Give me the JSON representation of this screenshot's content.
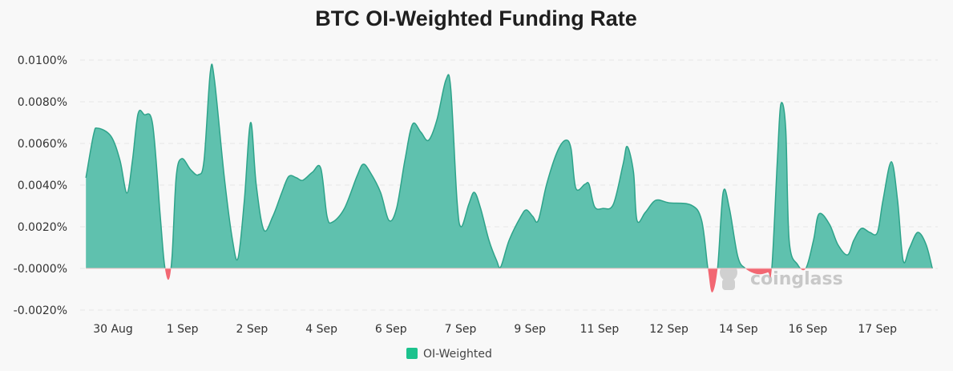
{
  "chart_data": {
    "type": "area",
    "title": "BTC OI-Weighted Funding Rate",
    "xlabel": "",
    "ylabel": "",
    "ylim": [
      -0.002,
      0.01
    ],
    "grid": true,
    "legend_position": "bottom-center",
    "y_ticks": [
      {
        "value": 0.01,
        "label": "0.0100%"
      },
      {
        "value": 0.008,
        "label": "0.0080%"
      },
      {
        "value": 0.006,
        "label": "0.0060%"
      },
      {
        "value": 0.004,
        "label": "0.0040%"
      },
      {
        "value": 0.002,
        "label": "0.0020%"
      },
      {
        "value": 0,
        "label": "-0.0000%"
      },
      {
        "value": -0.002,
        "label": "-0.0020%"
      }
    ],
    "x_ticks": [
      {
        "pos": 0,
        "label": "30 Aug"
      },
      {
        "pos": 1,
        "label": "1 Sep"
      },
      {
        "pos": 2,
        "label": "2 Sep"
      },
      {
        "pos": 3,
        "label": "4 Sep"
      },
      {
        "pos": 4,
        "label": "6 Sep"
      },
      {
        "pos": 5,
        "label": "7 Sep"
      },
      {
        "pos": 6,
        "label": "9 Sep"
      },
      {
        "pos": 7,
        "label": "11 Sep"
      },
      {
        "pos": 8,
        "label": "12 Sep"
      },
      {
        "pos": 9,
        "label": "14 Sep"
      },
      {
        "pos": 10,
        "label": "16 Sep"
      },
      {
        "pos": 11,
        "label": "17 Sep"
      }
    ],
    "xlim": [
      -0.39,
      11.79
    ],
    "series": [
      {
        "name": "OI-Weighted",
        "color": "#5fc1ae",
        "line_color": "#2ea38a",
        "negative_color": "#f26772",
        "legend_color": "#1cc28d",
        "x": [
          -0.39,
          -0.28,
          -0.22,
          -0.03,
          0.1,
          0.2,
          0.28,
          0.36,
          0.45,
          0.57,
          0.68,
          0.74,
          0.8,
          0.85,
          0.91,
          0.99,
          1.12,
          1.23,
          1.31,
          1.4,
          1.46,
          1.6,
          1.72,
          1.8,
          1.89,
          1.98,
          2.06,
          2.17,
          2.3,
          2.43,
          2.53,
          2.64,
          2.73,
          2.87,
          2.99,
          3.08,
          3.16,
          3.33,
          3.51,
          3.6,
          3.7,
          3.85,
          3.97,
          4.08,
          4.2,
          4.31,
          4.43,
          4.54,
          4.66,
          4.79,
          4.86,
          4.95,
          5.01,
          5.12,
          5.2,
          5.29,
          5.41,
          5.52,
          5.58,
          5.7,
          5.87,
          5.95,
          6.04,
          6.12,
          6.24,
          6.39,
          6.51,
          6.59,
          6.66,
          6.79,
          6.85,
          6.93,
          7.05,
          7.2,
          7.34,
          7.4,
          7.49,
          7.54,
          7.66,
          7.81,
          8.0,
          8.32,
          8.47,
          8.56,
          8.62,
          8.7,
          8.78,
          8.87,
          8.99,
          9.1,
          9.27,
          9.42,
          9.48,
          9.56,
          9.61,
          9.68,
          9.73,
          9.85,
          9.97,
          10.08,
          10.16,
          10.31,
          10.43,
          10.57,
          10.66,
          10.77,
          10.89,
          11.0,
          11.08,
          11.2,
          11.29,
          11.37,
          11.46,
          11.58,
          11.7,
          11.79
        ],
        "y": [
          0.00435,
          0.00642,
          0.00673,
          0.00635,
          0.00519,
          0.00362,
          0.00519,
          0.00742,
          0.00738,
          0.00692,
          0.0025,
          0.00019,
          -0.00054,
          0.00058,
          0.00442,
          0.00527,
          0.00473,
          0.0045,
          0.00519,
          0.00942,
          0.00904,
          0.00442,
          0.00135,
          0.0005,
          0.00327,
          0.007,
          0.00404,
          0.00185,
          0.0025,
          0.00365,
          0.00442,
          0.00435,
          0.00423,
          0.00462,
          0.00481,
          0.0025,
          0.00223,
          0.00288,
          0.00442,
          0.005,
          0.00462,
          0.00365,
          0.00231,
          0.00288,
          0.00519,
          0.00692,
          0.00654,
          0.00615,
          0.00712,
          0.00904,
          0.00865,
          0.00327,
          0.002,
          0.00308,
          0.00365,
          0.00288,
          0.00135,
          0.00038,
          8e-05,
          0.00135,
          0.0025,
          0.00281,
          0.0025,
          0.00231,
          0.00404,
          0.00558,
          0.00615,
          0.00577,
          0.00385,
          0.00404,
          0.00404,
          0.00296,
          0.00288,
          0.00308,
          0.005,
          0.00585,
          0.00462,
          0.00231,
          0.00269,
          0.00327,
          0.00315,
          0.00304,
          0.00231,
          0,
          -0.00115,
          0,
          0.00365,
          0.00288,
          0.00058,
          0,
          -0.00027,
          -0.00019,
          0,
          0.00519,
          0.00788,
          0.00673,
          0.00135,
          0.00019,
          0,
          0.00135,
          0.00262,
          0.00212,
          0.00115,
          0.00065,
          0.00135,
          0.00192,
          0.00173,
          0.00173,
          0.00327,
          0.00512,
          0.00327,
          0.00038,
          0.00096,
          0.00173,
          0.00115,
          0
        ]
      }
    ],
    "watermark": "coinglass"
  }
}
